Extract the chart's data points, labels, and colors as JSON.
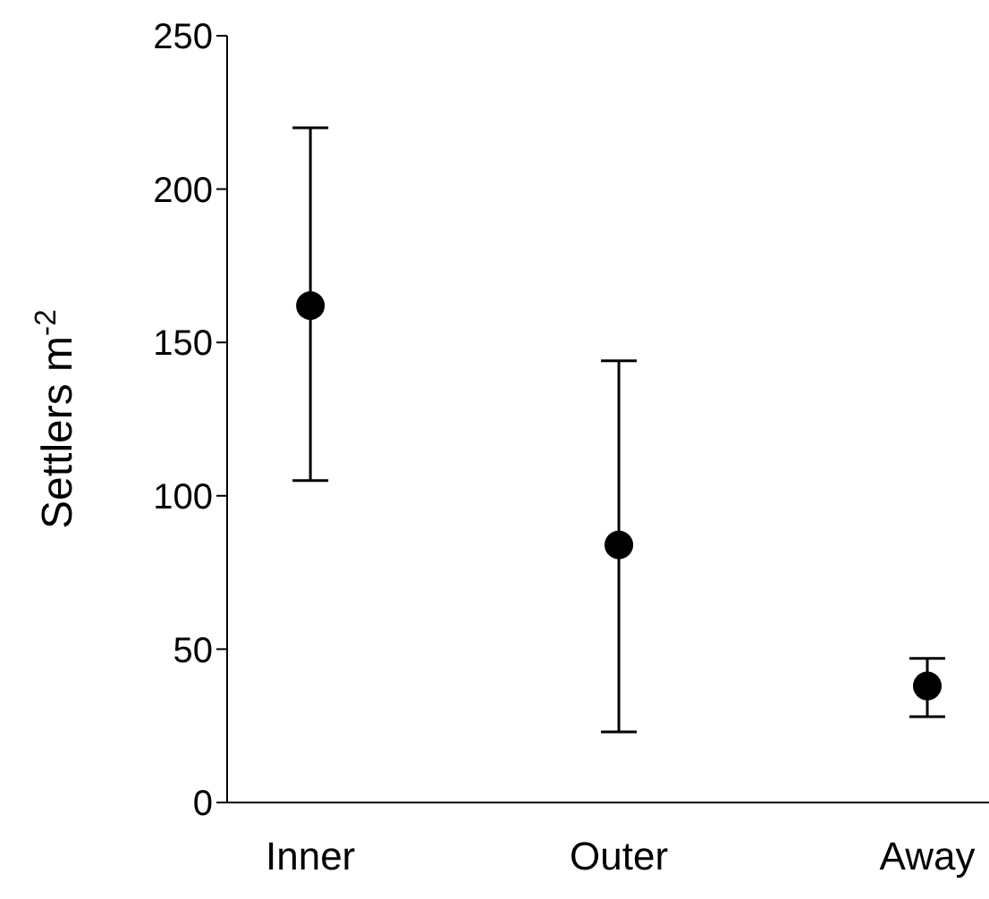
{
  "chart_data": {
    "type": "scatter",
    "ylabel": "Settlers m$^{-2}$",
    "categories": [
      "Inner",
      "Outer",
      "Away"
    ],
    "series": [
      {
        "color": "#000000",
        "values": [
          162,
          84,
          38
        ],
        "errors": [
          [
            105,
            220
          ],
          [
            23,
            144
          ],
          [
            28,
            47
          ]
        ]
      }
    ],
    "ylim": [
      0,
      250
    ],
    "yticks": [
      0,
      50,
      100,
      150,
      200,
      250
    ],
    "marker": "circle",
    "grid": false,
    "legend": false
  }
}
